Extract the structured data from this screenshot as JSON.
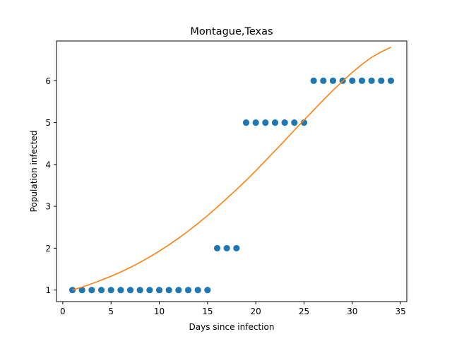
{
  "chart_data": {
    "type": "scatter",
    "title": "Montague,Texas",
    "xlabel": "Days since infection",
    "ylabel": "Population infected",
    "xlim": [
      -0.65,
      35.65
    ],
    "ylim": [
      0.725,
      6.95
    ],
    "xticks": [
      0,
      5,
      10,
      15,
      20,
      25,
      30,
      35
    ],
    "yticks": [
      1,
      2,
      3,
      4,
      5,
      6
    ],
    "grid": false,
    "legend": "none",
    "series": [
      {
        "kind": "scatter",
        "color": "#1f77b4",
        "x": [
          1,
          2,
          3,
          4,
          5,
          6,
          7,
          8,
          9,
          10,
          11,
          12,
          13,
          14,
          15,
          16,
          17,
          18,
          19,
          20,
          21,
          22,
          23,
          24,
          25,
          26,
          27,
          28,
          29,
          30,
          31,
          32,
          33,
          34
        ],
        "y": [
          1,
          1,
          1,
          1,
          1,
          1,
          1,
          1,
          1,
          1,
          1,
          1,
          1,
          1,
          1,
          2,
          2,
          2,
          5,
          5,
          5,
          5,
          5,
          5,
          5,
          6,
          6,
          6,
          6,
          6,
          6,
          6,
          6,
          6
        ]
      },
      {
        "kind": "line",
        "color": "#ff7f0e",
        "x": [
          1,
          2,
          3,
          4,
          5,
          6,
          7,
          8,
          9,
          10,
          11,
          12,
          13,
          14,
          15,
          16,
          17,
          18,
          19,
          20,
          21,
          22,
          23,
          24,
          25,
          26,
          27,
          28,
          29,
          30,
          31,
          32,
          33,
          34
        ],
        "y": [
          1.0,
          1.07,
          1.15,
          1.24,
          1.33,
          1.43,
          1.54,
          1.66,
          1.79,
          1.93,
          2.08,
          2.24,
          2.41,
          2.59,
          2.78,
          2.98,
          3.19,
          3.4,
          3.62,
          3.85,
          4.09,
          4.33,
          4.57,
          4.82,
          5.06,
          5.3,
          5.54,
          5.77,
          5.99,
          6.2,
          6.39,
          6.56,
          6.69,
          6.8
        ]
      }
    ]
  }
}
